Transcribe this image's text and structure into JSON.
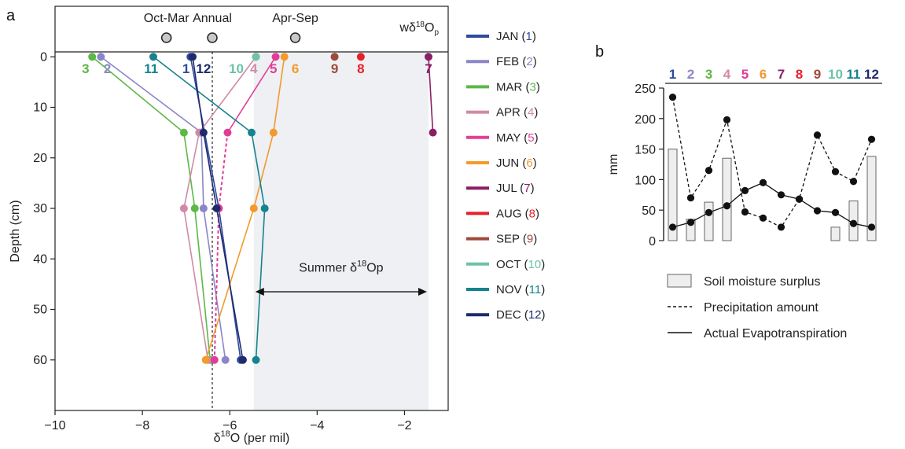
{
  "panel_a": {
    "letter": "a",
    "chart_data": {
      "type": "line",
      "xlabel": "δ18O (per mil)",
      "xlabel_main": "δ",
      "xlabel_sup": "18",
      "xlabel_rest": "O (per mil)",
      "ylabel": "Depth (cm)",
      "xlim": [
        -10,
        -1
      ],
      "ylim": [
        70,
        -10
      ],
      "x_ticks": [
        -10,
        -8,
        -6,
        -4,
        -2
      ],
      "x_tick_labels": [
        "−10",
        "−8",
        "−6",
        "−4",
        "−2"
      ],
      "y_ticks": [
        0,
        10,
        20,
        30,
        40,
        50,
        60
      ],
      "y_tick_labels": [
        "0",
        "10",
        "20",
        "30",
        "40",
        "50",
        "60"
      ],
      "series": [
        {
          "name": "JAN",
          "num": "1",
          "color": "#2e4a9e",
          "points": [
            [
              -6.9,
              0
            ],
            [
              -6.25,
              30
            ],
            [
              -5.75,
              60
            ]
          ]
        },
        {
          "name": "FEB",
          "num": "2",
          "color": "#8a86c8",
          "points": [
            [
              -8.95,
              0
            ],
            [
              -6.65,
              15
            ],
            [
              -6.6,
              30
            ],
            [
              -6.1,
              60
            ]
          ]
        },
        {
          "name": "MAR",
          "num": "3",
          "color": "#5cb847",
          "points": [
            [
              -9.15,
              0
            ],
            [
              -7.05,
              15
            ],
            [
              -6.8,
              30
            ],
            [
              -6.45,
              60
            ]
          ]
        },
        {
          "name": "APR",
          "num": "4",
          "color": "#d08aa6",
          "points": [
            [
              -5.4,
              0
            ],
            [
              -6.7,
              15
            ],
            [
              -7.05,
              30
            ],
            [
              -6.5,
              60
            ]
          ]
        },
        {
          "name": "MAY",
          "num": "5",
          "color": "#e23d96",
          "points": [
            [
              -4.95,
              0
            ],
            [
              -6.05,
              15
            ],
            [
              -6.25,
              30
            ],
            [
              -6.35,
              60
            ]
          ],
          "dashed_from": 1
        },
        {
          "name": "JUN",
          "num": "6",
          "color": "#f29a2e",
          "points": [
            [
              -4.75,
              0
            ],
            [
              -5.0,
              15
            ],
            [
              -5.45,
              30
            ],
            [
              -6.55,
              60
            ]
          ]
        },
        {
          "name": "JUL",
          "num": "7",
          "color": "#8b1f66",
          "points": [
            [
              -1.45,
              0
            ],
            [
              -1.35,
              15
            ]
          ]
        },
        {
          "name": "AUG",
          "num": "8",
          "color": "#e8202a",
          "points": [
            [
              -3.0,
              0
            ]
          ]
        },
        {
          "name": "SEP",
          "num": "9",
          "color": "#9e4a3c",
          "points": [
            [
              -3.6,
              0
            ]
          ]
        },
        {
          "name": "OCT",
          "num": "10",
          "color": "#6cc3a5",
          "points": [
            [
              -5.4,
              0
            ]
          ]
        },
        {
          "name": "NOV",
          "num": "11",
          "color": "#16838f",
          "points": [
            [
              -7.75,
              0
            ],
            [
              -5.5,
              15
            ],
            [
              -5.2,
              30
            ],
            [
              -5.4,
              60
            ]
          ]
        },
        {
          "name": "DEC",
          "num": "12",
          "color": "#1e2a6b",
          "points": [
            [
              -6.85,
              0
            ],
            [
              -6.6,
              15
            ],
            [
              -6.3,
              30
            ],
            [
              -5.7,
              60
            ]
          ]
        }
      ],
      "annual_line_x": -6.4,
      "summer_band": [
        -5.45,
        -1.45
      ],
      "summer_label": "Summer δ18Op",
      "summer_label_main": "Summer δ",
      "summer_label_sup": "18",
      "summer_label_rest": "Op",
      "top_markers": [
        {
          "label": "Oct-Mar",
          "x": -7.45
        },
        {
          "label": "Annual",
          "x": -6.4
        },
        {
          "label": "Apr-Sep",
          "x": -4.5
        }
      ],
      "top_right_label": "wδ18Op",
      "top_right_main": "wδ",
      "top_right_sup": "18",
      "top_right_rest": "O",
      "top_right_sub": "p",
      "month_label_order": [
        {
          "num": "3",
          "x": -9.3
        },
        {
          "num": "2",
          "x": -8.8
        },
        {
          "num": "11",
          "x": -7.8
        },
        {
          "num": "1",
          "x": -7.0
        },
        {
          "num": "12",
          "x": -6.6
        },
        {
          "num": "10",
          "x": -5.85
        },
        {
          "num": "4",
          "x": -5.45
        },
        {
          "num": "5",
          "x": -5.0
        },
        {
          "num": "6",
          "x": -4.5
        },
        {
          "num": "9",
          "x": -3.6
        },
        {
          "num": "8",
          "x": -3.0
        },
        {
          "num": "7",
          "x": -1.45
        }
      ]
    }
  },
  "legend_a": {
    "items": [
      {
        "name": "JAN",
        "num": "1",
        "color": "#2e4a9e"
      },
      {
        "name": "FEB",
        "num": "2",
        "color": "#8a86c8"
      },
      {
        "name": "MAR",
        "num": "3",
        "color": "#5cb847"
      },
      {
        "name": "APR",
        "num": "4",
        "color": "#d08aa6"
      },
      {
        "name": "MAY",
        "num": "5",
        "color": "#e23d96"
      },
      {
        "name": "JUN",
        "num": "6",
        "color": "#f29a2e"
      },
      {
        "name": "JUL",
        "num": "7",
        "color": "#8b1f66"
      },
      {
        "name": "AUG",
        "num": "8",
        "color": "#e8202a"
      },
      {
        "name": "SEP",
        "num": "9",
        "color": "#9e4a3c"
      },
      {
        "name": "OCT",
        "num": "10",
        "color": "#6cc3a5"
      },
      {
        "name": "NOV",
        "num": "11",
        "color": "#16838f"
      },
      {
        "name": "DEC",
        "num": "12",
        "color": "#1e2a6b"
      }
    ]
  },
  "panel_b": {
    "letter": "b",
    "chart_data": {
      "type": "bar",
      "ylabel": "mm",
      "ylim": [
        0,
        250
      ],
      "y_ticks": [
        0,
        50,
        100,
        150,
        200,
        250
      ],
      "categories": [
        "1",
        "2",
        "3",
        "4",
        "5",
        "6",
        "7",
        "8",
        "9",
        "10",
        "11",
        "12"
      ],
      "category_colors": [
        "#2e4a9e",
        "#8a86c8",
        "#5cb847",
        "#d08aa6",
        "#e23d96",
        "#f29a2e",
        "#8b1f66",
        "#e8202a",
        "#9e4a3c",
        "#6cc3a5",
        "#16838f",
        "#1e2a6b"
      ],
      "series": [
        {
          "name": "Soil moisture surplus",
          "kind": "bar",
          "values": [
            150,
            35,
            63,
            135,
            0,
            0,
            0,
            0,
            0,
            22,
            65,
            138
          ]
        },
        {
          "name": "Precipitation amount",
          "kind": "dashed-line",
          "values": [
            235,
            70,
            115,
            198,
            47,
            37,
            22,
            68,
            173,
            113,
            97,
            166
          ]
        },
        {
          "name": "Actual Evapotranspiration",
          "kind": "solid-line",
          "values": [
            22,
            30,
            46,
            57,
            82,
            95,
            75,
            68,
            49,
            46,
            28,
            22
          ]
        }
      ]
    }
  },
  "legend_b": {
    "items": [
      {
        "label": "Soil moisture surplus",
        "kind": "box"
      },
      {
        "label": "Precipitation amount",
        "kind": "dashed"
      },
      {
        "label": "Actual Evapotranspiration",
        "kind": "solid"
      }
    ]
  }
}
